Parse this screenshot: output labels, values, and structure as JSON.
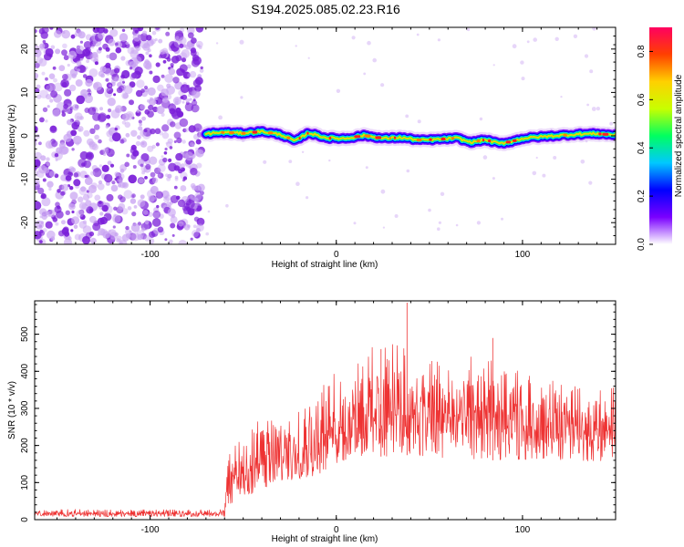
{
  "title": "S194.2025.085.02.23.R16",
  "colors": {
    "blob": "#7b1fd9",
    "blob_light": "#c9a4f2",
    "snr_line": "#ee3333",
    "colormap": [
      "#ffffff",
      "#7a00ff",
      "#0000ff",
      "#00c8ff",
      "#00ff60",
      "#c8ff00",
      "#ffd000",
      "#ff4000",
      "#ff0060"
    ]
  },
  "chart_data": [
    {
      "type": "heatmap",
      "name": "spectrogram",
      "xlabel": "Height of straight line (km)",
      "ylabel": "Frequency (Hz)",
      "xlim": [
        -162,
        150
      ],
      "ylim": [
        -25,
        25
      ],
      "x_ticks": [
        "-100",
        "0",
        "100"
      ],
      "x_tick_values": [
        -100,
        0,
        100
      ],
      "y_ticks": [
        "20",
        "10",
        "0",
        "-10",
        "-20"
      ],
      "y_tick_values": [
        20,
        10,
        0,
        -10,
        -20
      ],
      "noise_region_x": [
        -162,
        -72
      ],
      "signal_start_x": -70,
      "ridge": {
        "x": [
          -70,
          -60,
          -50,
          -40,
          -30,
          -22,
          -15,
          -5,
          5,
          15,
          25,
          35,
          45,
          55,
          65,
          72,
          80,
          88,
          95,
          100,
          110,
          120,
          130,
          140,
          150
        ],
        "y": [
          0.5,
          0.8,
          0.6,
          1.0,
          0.3,
          -1.2,
          0.7,
          -0.5,
          -0.6,
          0.1,
          -0.6,
          -0.4,
          -1.0,
          -0.8,
          -0.5,
          -1.5,
          -0.9,
          -1.8,
          -1.2,
          -0.6,
          -0.2,
          0.1,
          0.4,
          0.5,
          0.2
        ]
      },
      "colorbar": {
        "label": "Normalized spectral amplitude",
        "range": [
          0.0,
          0.9
        ],
        "ticks": [
          "0.0",
          "0.2",
          "0.4",
          "0.6",
          "0.8"
        ],
        "tick_values": [
          0.0,
          0.2,
          0.4,
          0.6,
          0.8
        ]
      }
    },
    {
      "type": "line",
      "name": "snr",
      "xlabel": "Height of straight line (km)",
      "ylabel": "SNR (10 * v/v)",
      "xlim": [
        -162,
        150
      ],
      "ylim": [
        0,
        590
      ],
      "x_ticks": [
        "-100",
        "0",
        "100"
      ],
      "x_tick_values": [
        -100,
        0,
        100
      ],
      "y_ticks": [
        "0",
        "100",
        "200",
        "300",
        "400",
        "500"
      ],
      "y_tick_values": [
        0,
        100,
        200,
        300,
        400,
        500
      ],
      "envelope": {
        "x": [
          -162,
          -60,
          -58,
          -45,
          -30,
          -20,
          -10,
          0,
          10,
          20,
          30,
          40,
          50,
          60,
          70,
          80,
          90,
          100,
          110,
          120,
          130,
          140,
          150
        ],
        "low": [
          8,
          8,
          40,
          70,
          100,
          110,
          120,
          150,
          160,
          170,
          170,
          175,
          170,
          165,
          165,
          160,
          160,
          160,
          165,
          160,
          160,
          155,
          160
        ],
        "high": [
          28,
          28,
          190,
          260,
          290,
          310,
          360,
          400,
          440,
          470,
          480,
          470,
          440,
          420,
          430,
          480,
          420,
          400,
          390,
          370,
          360,
          350,
          360
        ]
      },
      "peaks": [
        {
          "x": 38,
          "y": 585
        },
        {
          "x": 84,
          "y": 490
        },
        {
          "x": 24,
          "y": 460
        }
      ]
    }
  ]
}
